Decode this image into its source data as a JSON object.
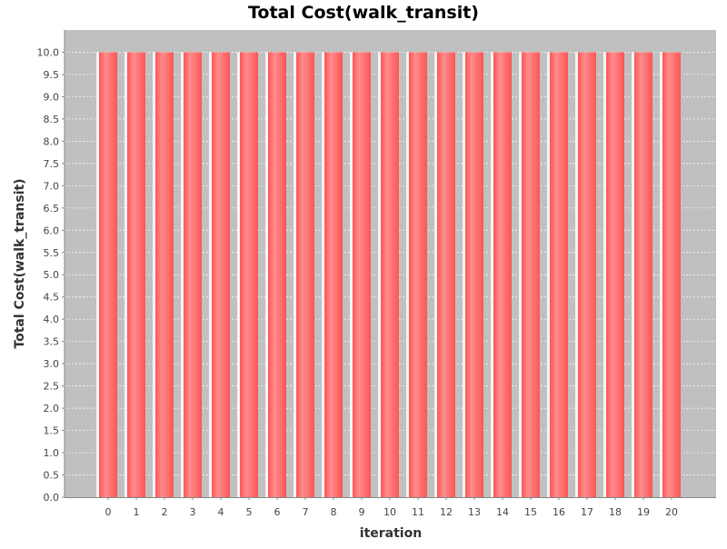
{
  "chart_data": {
    "type": "bar",
    "title": "Total Cost(walk_transit)",
    "xlabel": "iteration",
    "ylabel": "Total Cost(walk_transit)",
    "categories": [
      "0",
      "1",
      "2",
      "3",
      "4",
      "5",
      "6",
      "7",
      "8",
      "9",
      "10",
      "11",
      "12",
      "13",
      "14",
      "15",
      "16",
      "17",
      "18",
      "19",
      "20"
    ],
    "values": [
      10,
      10,
      10,
      10,
      10,
      10,
      10,
      10,
      10,
      10,
      10,
      10,
      10,
      10,
      10,
      10,
      10,
      10,
      10,
      10,
      10
    ],
    "ylim": [
      0,
      10.5
    ],
    "yticks": [
      "0.0",
      "0.5",
      "1.0",
      "1.5",
      "2.0",
      "2.5",
      "3.0",
      "3.5",
      "4.0",
      "4.5",
      "5.0",
      "5.5",
      "6.0",
      "6.5",
      "7.0",
      "7.5",
      "8.0",
      "8.5",
      "9.0",
      "9.5",
      "10.0"
    ],
    "grid": true,
    "colors": {
      "bar": "#ff5555",
      "bar_highlight": "#ff8c8c",
      "plot_background": "#c0c0c0",
      "grid": "#ffffff"
    }
  }
}
